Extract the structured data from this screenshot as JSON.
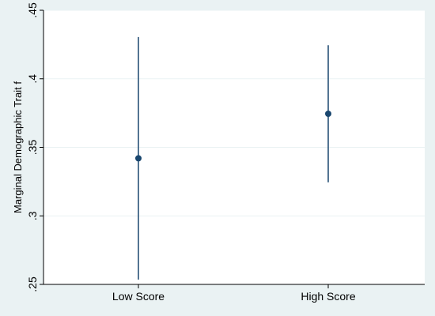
{
  "chart_data": {
    "type": "scatter",
    "title": "",
    "xlabel": "",
    "ylabel": "Marginal Demographic Trait f",
    "categories": [
      "Low Score",
      "High Score"
    ],
    "series": [
      {
        "estimates": [
          0.342,
          0.3745
        ],
        "ci_lower": [
          0.2535,
          0.3245
        ],
        "ci_upper": [
          0.4305,
          0.4245
        ]
      }
    ],
    "ylim": [
      0.25,
      0.45
    ],
    "yticks": [
      ".25",
      ".3",
      ".35",
      ".4",
      ".45"
    ],
    "ytick_values": [
      0.25,
      0.3,
      0.35,
      0.4,
      0.45
    ],
    "grid": true,
    "colors": {
      "marker": "#1a476f",
      "grid": "#eaf2f3",
      "plot_bg": "#ffffff",
      "outer_bg": "#eaf2f3"
    }
  }
}
